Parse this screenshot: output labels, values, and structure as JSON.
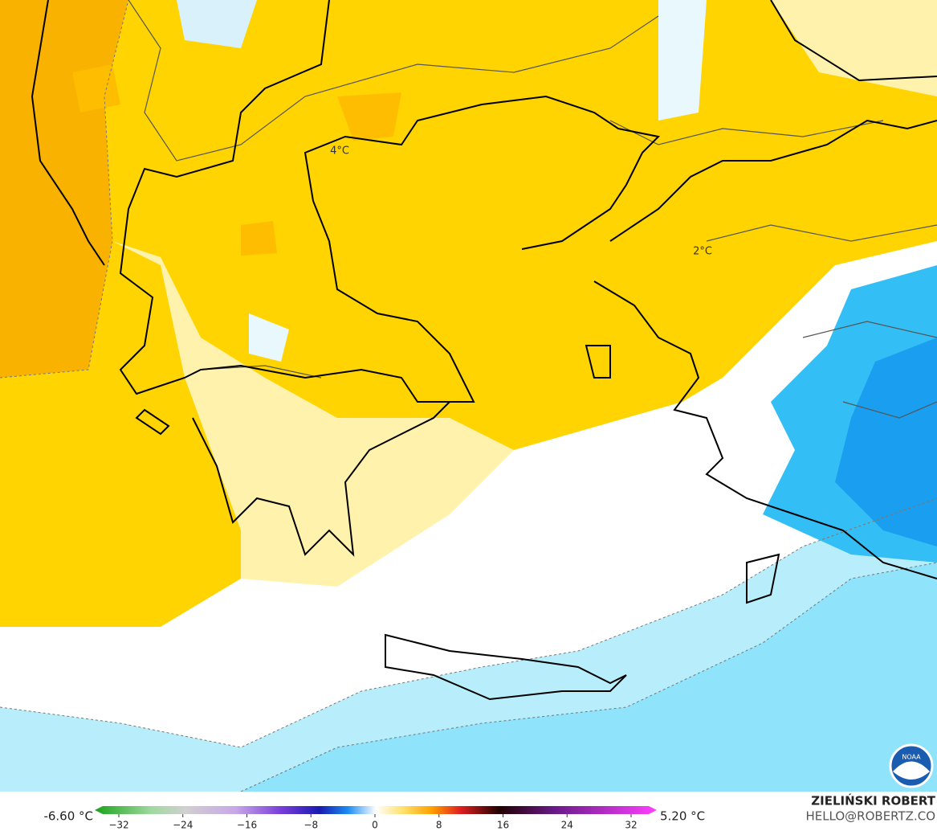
{
  "labels": [
    "4°C",
    "2°C"
  ],
  "logo": "NOAA",
  "footer": {
    "min": "-6.60 °C",
    "max": "5.20 °C",
    "author": "ZIELIŃSKI ROBERT",
    "contact": "HELLO@ROBERTZ.CO",
    "colorbar_ticks": [
      "−32",
      "−24",
      "−16",
      "−8",
      "0",
      "8",
      "16",
      "24",
      "32"
    ]
  }
}
